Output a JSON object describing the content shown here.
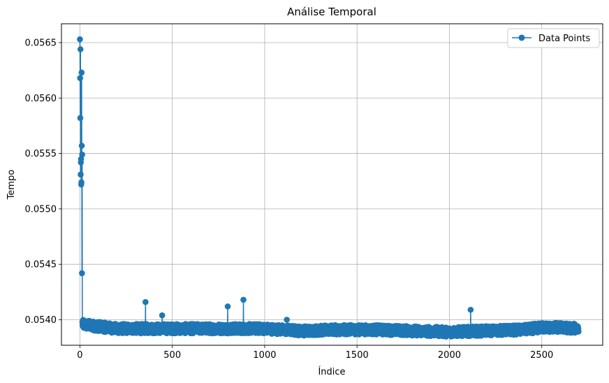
{
  "chart_data": {
    "type": "line",
    "title": "Análise Temporal",
    "xlabel": "Índice",
    "ylabel": "Tempo",
    "xlim": [
      -100,
      2830
    ],
    "ylim": [
      0.05377,
      0.05667
    ],
    "x_ticks": [
      0,
      500,
      1000,
      1500,
      2000,
      2500
    ],
    "x_tick_labels": [
      "0",
      "500",
      "1000",
      "1500",
      "2000",
      "2500"
    ],
    "y_ticks": [
      0.054,
      0.0545,
      0.055,
      0.0555,
      0.056,
      0.0565
    ],
    "y_tick_labels": [
      "0.0540",
      "0.0545",
      "0.0550",
      "0.0555",
      "0.0560",
      "0.0565"
    ],
    "grid": true,
    "legend_position": "top-right",
    "colors": {
      "series": "#1f77b4",
      "grid": "#b0b0b0",
      "axes": "#000000"
    },
    "series": [
      {
        "name": "Data Points",
        "marker": "circle",
        "n_points": 2700,
        "head": [
          [
            0,
            0.05653
          ],
          [
            1,
            0.05618
          ],
          [
            2,
            0.05582
          ],
          [
            3,
            0.05644
          ],
          [
            4,
            0.05531
          ],
          [
            5,
            0.05542
          ],
          [
            6,
            0.05545
          ],
          [
            7,
            0.05522
          ],
          [
            8,
            0.05524
          ],
          [
            9,
            0.05623
          ],
          [
            10,
            0.05557
          ],
          [
            11,
            0.05442
          ],
          [
            12,
            0.05549
          ],
          [
            13,
            0.05398
          ],
          [
            14,
            0.05395
          ]
        ],
        "spikes": [
          [
            355,
            0.05416
          ],
          [
            445,
            0.05404
          ],
          [
            800,
            0.05412
          ],
          [
            885,
            0.05418
          ],
          [
            1120,
            0.054
          ],
          [
            2115,
            0.05409
          ]
        ],
        "baseline": [
          [
            0,
            0.05396
          ],
          [
            100,
            0.05394
          ],
          [
            200,
            0.05392
          ],
          [
            400,
            0.05392
          ],
          [
            600,
            0.05392
          ],
          [
            800,
            0.05392
          ],
          [
            1000,
            0.05392
          ],
          [
            1200,
            0.0539
          ],
          [
            1400,
            0.05391
          ],
          [
            1600,
            0.05391
          ],
          [
            1800,
            0.0539
          ],
          [
            2000,
            0.05389
          ],
          [
            2200,
            0.0539
          ],
          [
            2400,
            0.05391
          ],
          [
            2500,
            0.05393
          ],
          [
            2600,
            0.05393
          ],
          [
            2700,
            0.05392
          ]
        ]
      }
    ]
  }
}
